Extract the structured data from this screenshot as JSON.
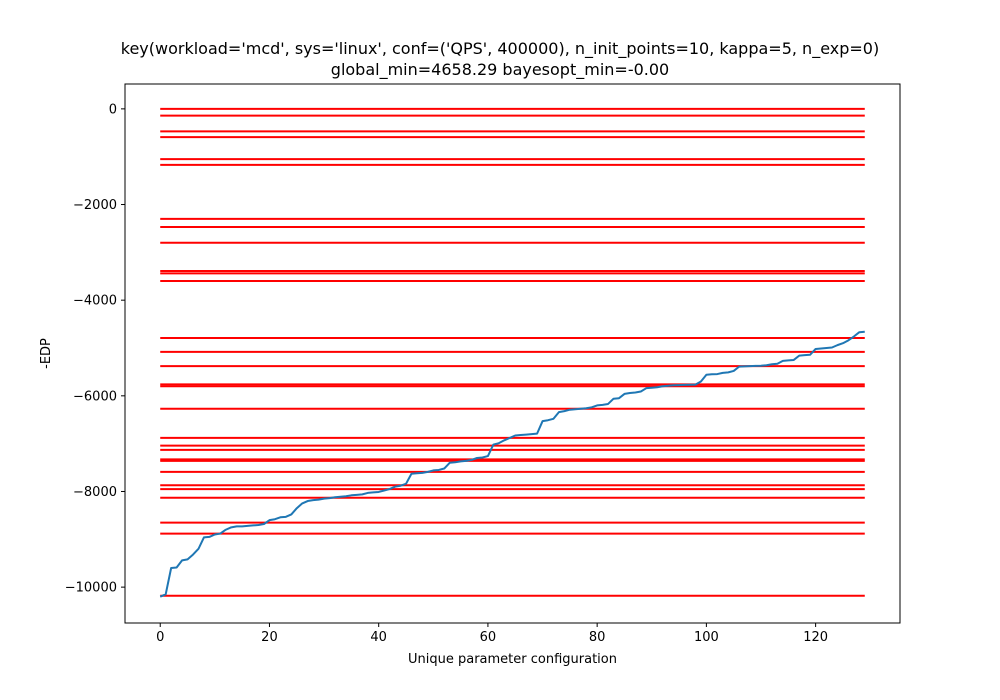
{
  "chart_data": {
    "type": "line",
    "title": "key(workload='mcd', sys='linux', conf=('QPS', 400000), n_init_points=10, kappa=5, n_exp=0)",
    "subtitle": "global_min=4658.29 bayesopt_min=-0.00",
    "xlabel": "Unique parameter configuration",
    "ylabel": "-EDP",
    "xlim": [
      -6.45,
      135.45
    ],
    "ylim": [
      -10750,
      520
    ],
    "xticks": [
      0,
      20,
      40,
      60,
      80,
      100,
      120
    ],
    "xtick_labels": [
      "0",
      "20",
      "40",
      "60",
      "80",
      "100",
      "120"
    ],
    "yticks": [
      0,
      -2000,
      -4000,
      -6000,
      -8000,
      -10000
    ],
    "ytick_labels": [
      "0",
      "−2000",
      "−4000",
      "−6000",
      "−8000",
      "−10000"
    ],
    "grid": false,
    "series": [
      {
        "color": "#1f77b4",
        "x": [
          0,
          1,
          2,
          3,
          4,
          5,
          6,
          7,
          8,
          9,
          10,
          11,
          12,
          13,
          14,
          15,
          16,
          17,
          18,
          19,
          20,
          21,
          22,
          23,
          24,
          25,
          26,
          27,
          28,
          29,
          30,
          31,
          32,
          33,
          34,
          35,
          36,
          37,
          38,
          39,
          40,
          41,
          42,
          43,
          44,
          45,
          46,
          47,
          48,
          49,
          50,
          51,
          52,
          53,
          54,
          55,
          56,
          57,
          58,
          59,
          60,
          61,
          62,
          63,
          64,
          65,
          66,
          67,
          68,
          69,
          70,
          71,
          72,
          73,
          74,
          75,
          76,
          77,
          78,
          79,
          80,
          81,
          82,
          83,
          84,
          85,
          86,
          87,
          88,
          89,
          90,
          91,
          92,
          93,
          94,
          95,
          96,
          97,
          98,
          99,
          100,
          101,
          102,
          103,
          104,
          105,
          106,
          107,
          108,
          109,
          110,
          111,
          112,
          113,
          114,
          115,
          116,
          117,
          118,
          119,
          120,
          121,
          122,
          123,
          124,
          125,
          126,
          127,
          128,
          129
        ],
        "y": [
          -10200,
          -10150,
          -9600,
          -9590,
          -9440,
          -9420,
          -9320,
          -9200,
          -8960,
          -8950,
          -8900,
          -8880,
          -8800,
          -8750,
          -8730,
          -8730,
          -8720,
          -8710,
          -8700,
          -8680,
          -8600,
          -8580,
          -8540,
          -8530,
          -8480,
          -8350,
          -8250,
          -8200,
          -8180,
          -8170,
          -8150,
          -8140,
          -8120,
          -8110,
          -8100,
          -8080,
          -8070,
          -8060,
          -8030,
          -8020,
          -8010,
          -7980,
          -7950,
          -7900,
          -7880,
          -7840,
          -7630,
          -7620,
          -7610,
          -7590,
          -7560,
          -7550,
          -7520,
          -7400,
          -7390,
          -7370,
          -7360,
          -7340,
          -7300,
          -7290,
          -7260,
          -7020,
          -6990,
          -6930,
          -6880,
          -6830,
          -6820,
          -6810,
          -6800,
          -6790,
          -6530,
          -6510,
          -6480,
          -6340,
          -6320,
          -6290,
          -6280,
          -6270,
          -6260,
          -6240,
          -6200,
          -6190,
          -6170,
          -6060,
          -6050,
          -5960,
          -5940,
          -5930,
          -5910,
          -5840,
          -5830,
          -5820,
          -5800,
          -5790,
          -5780,
          -5775,
          -5770,
          -5768,
          -5766,
          -5700,
          -5560,
          -5550,
          -5545,
          -5520,
          -5510,
          -5480,
          -5390,
          -5385,
          -5380,
          -5375,
          -5370,
          -5360,
          -5340,
          -5330,
          -5270,
          -5260,
          -5250,
          -5160,
          -5150,
          -5140,
          -5020,
          -5010,
          -5000,
          -4990,
          -4940,
          -4900,
          -4840,
          -4760,
          -4670,
          -4660
        ]
      }
    ],
    "hlines": {
      "color": "#ff0000",
      "xmin": 0,
      "xmax": 129,
      "values": [
        0,
        -140,
        -470,
        -590,
        -1050,
        -1170,
        -2300,
        -2470,
        -2800,
        -3390,
        -3440,
        -3600,
        -4790,
        -5080,
        -5380,
        -5760,
        -5800,
        -6270,
        -6880,
        -7040,
        -7130,
        -7330,
        -7360,
        -7590,
        -7870,
        -7950,
        -8130,
        -8650,
        -8880,
        -10180
      ]
    }
  }
}
